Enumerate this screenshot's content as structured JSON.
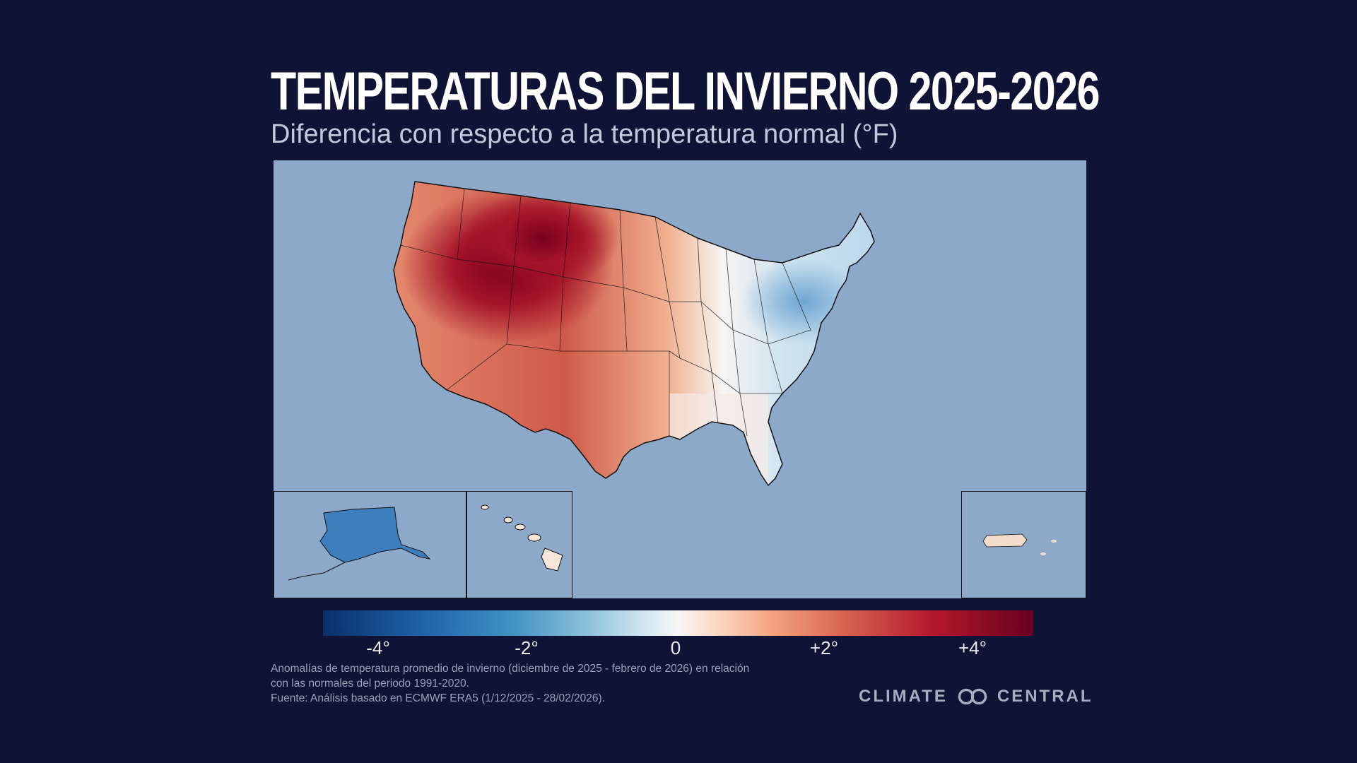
{
  "title": "TEMPERATURAS DEL INVIERNO 2025-2026",
  "subtitle": "Diferencia con respecto a la temperatura normal (°F)",
  "legend": {
    "ticks": [
      "-4°",
      "-2°",
      "0",
      "+2°",
      "+4°"
    ],
    "colors": [
      "#08306b",
      "#2166ac",
      "#4393c3",
      "#92c5de",
      "#f7f7f7",
      "#f4a582",
      "#d6604d",
      "#b2182b",
      "#67001f"
    ]
  },
  "map": {
    "background_color": "#8da9c9",
    "insets": [
      "Alaska",
      "Hawaii",
      "Puerto Rico"
    ],
    "anomaly_pattern": {
      "northern_rockies_west": "+4°",
      "southwest_plains": "+2°",
      "southeast": "0",
      "great_lakes_northeast": "-2°",
      "alaska": "-4°",
      "puerto_rico": "+1°"
    }
  },
  "footnote": {
    "line1": "Anomalías de temperatura promedio de invierno (diciembre de 2025 - febrero de 2026) en relación",
    "line2": "con las normales del periodo 1991-2020.",
    "line3": "Fuente: Análisis basado en ECMWF ERA5 (1/12/2025 - 28/02/2026)."
  },
  "brand": {
    "left": "CLIMATE",
    "right": "CENTRAL"
  }
}
